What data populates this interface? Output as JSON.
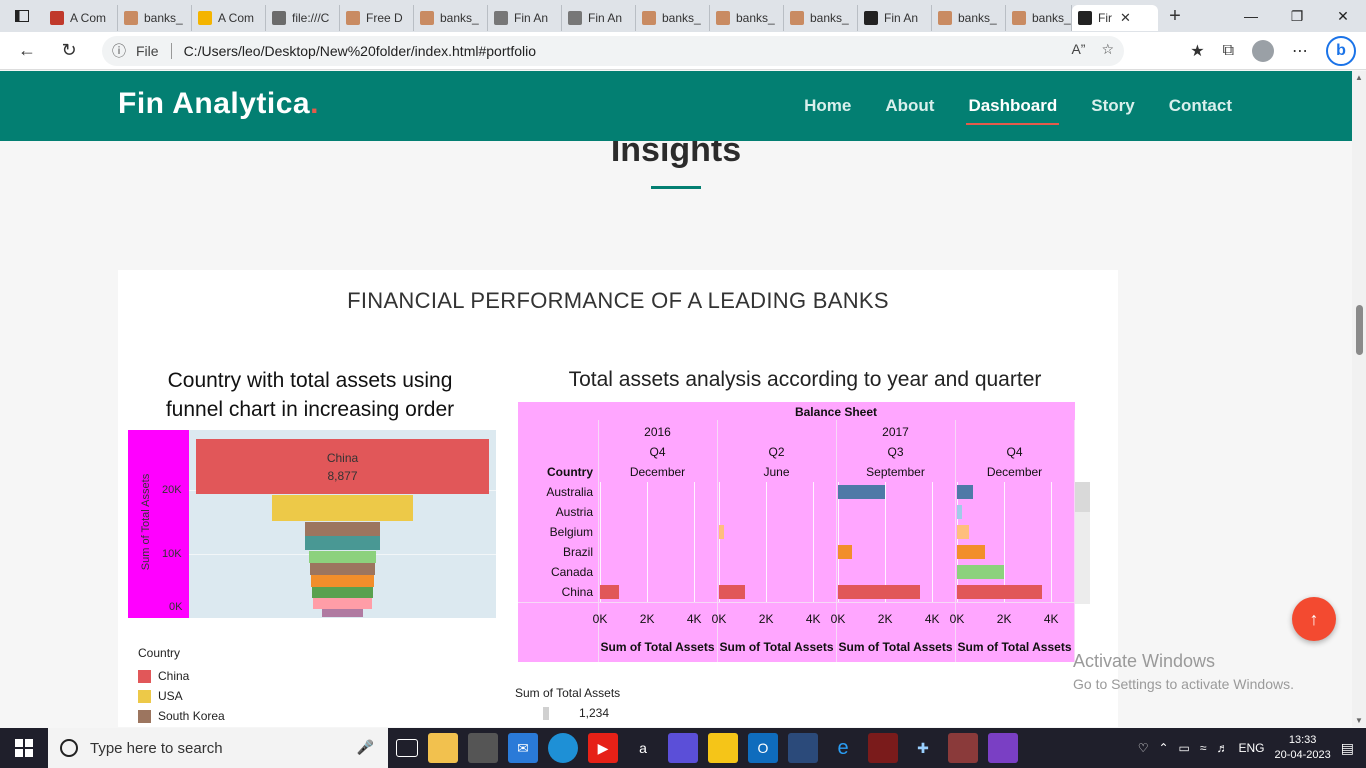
{
  "browser": {
    "tabs": [
      {
        "label": "A Com",
        "color": "#c0392b"
      },
      {
        "label": "banks_",
        "color": "#c98b62"
      },
      {
        "label": "A Com",
        "color": "#f4b400"
      },
      {
        "label": "file:///C",
        "color": "#6b6b6b"
      },
      {
        "label": "Free D",
        "color": "#c98b62"
      },
      {
        "label": "banks_",
        "color": "#c98b62"
      },
      {
        "label": "Fin An",
        "color": "#777777"
      },
      {
        "label": "Fin An",
        "color": "#777777"
      },
      {
        "label": "banks_",
        "color": "#c98b62"
      },
      {
        "label": "banks_",
        "color": "#c98b62"
      },
      {
        "label": "banks_",
        "color": "#c98b62"
      },
      {
        "label": "Fin An",
        "color": "#222222"
      },
      {
        "label": "banks_",
        "color": "#c98b62"
      },
      {
        "label": "banks_",
        "color": "#c98b62"
      },
      {
        "label": "Fir",
        "color": "#222222"
      }
    ],
    "file_label": "File",
    "url": "C:/Users/leo/Desktop/New%20folder/index.html#portfolio"
  },
  "site": {
    "logo": "Fin Analytica",
    "logo_dot": ".",
    "nav": [
      {
        "label": "Home"
      },
      {
        "label": "About"
      },
      {
        "label": "Dashboard",
        "active": true
      },
      {
        "label": "Story"
      },
      {
        "label": "Contact"
      }
    ],
    "section_title": "Insights"
  },
  "dashboard": {
    "title": "FINANCIAL PERFORMANCE OF A LEADING BANKS",
    "funnel_title": "Country with total assets using funnel chart in increasing order",
    "funnel_ylabel": "Sum of Total Assets",
    "funnel_ticks": [
      "20K",
      "10K",
      "0K"
    ],
    "funnel_top_label": "China",
    "funnel_top_value": "8,877",
    "legend_title": "Country",
    "legend": [
      {
        "name": "China",
        "color": "#e15759"
      },
      {
        "name": "USA",
        "color": "#edc948"
      },
      {
        "name": "South Korea",
        "color": "#9c755f"
      }
    ],
    "bs_title": "Total assets analysis according to year and quarter",
    "bs_header": "Balance Sheet",
    "bs_years": [
      "2016",
      "2017"
    ],
    "bs_quarters": [
      "Q4",
      "Q2",
      "Q3",
      "Q4"
    ],
    "bs_months": [
      "December",
      "June",
      "September",
      "December"
    ],
    "bs_country_header": "Country",
    "bs_countries": [
      "Australia",
      "Austria",
      "Belgium",
      "Brazil",
      "Canada",
      "China"
    ],
    "bs_axis_ticks": [
      "0K",
      "2K",
      "4K"
    ],
    "bs_axis_title": "Sum of Total Assets",
    "sum_legend_title": "Sum of Total Assets",
    "sum_legend_value": "1,234"
  },
  "overlay": {
    "activate_title": "Activate Windows",
    "activate_sub": "Go to Settings to activate Windows."
  },
  "taskbar": {
    "search_placeholder": "Type here to search",
    "language": "ENG",
    "time": "13:33",
    "date": "20-04-2023"
  },
  "chart_data": {
    "type": "bar",
    "title": "Total assets analysis according to year and quarter",
    "xlabel": "Sum of Total Assets",
    "categories": [
      "Australia",
      "Austria",
      "Belgium",
      "Brazil",
      "Canada",
      "China"
    ],
    "xlim": [
      0,
      4500
    ],
    "series": [
      {
        "name": "2016 Q4 December",
        "values": [
          0,
          0,
          0,
          0,
          0,
          800
        ]
      },
      {
        "name": "2017 Q2 June",
        "values": [
          0,
          0,
          200,
          0,
          0,
          1100
        ]
      },
      {
        "name": "2017 Q3 September",
        "values": [
          2000,
          0,
          0,
          600,
          0,
          3500
        ]
      },
      {
        "name": "2017 Q4 December",
        "values": [
          700,
          200,
          500,
          1200,
          2000,
          3600
        ]
      }
    ],
    "colors": {
      "Australia": "#4e79a7",
      "Austria": "#a0cbe8",
      "Belgium": "#ffbe7d",
      "Brazil": "#f28e2b",
      "Canada": "#8cd17d",
      "China": "#e15759"
    }
  }
}
